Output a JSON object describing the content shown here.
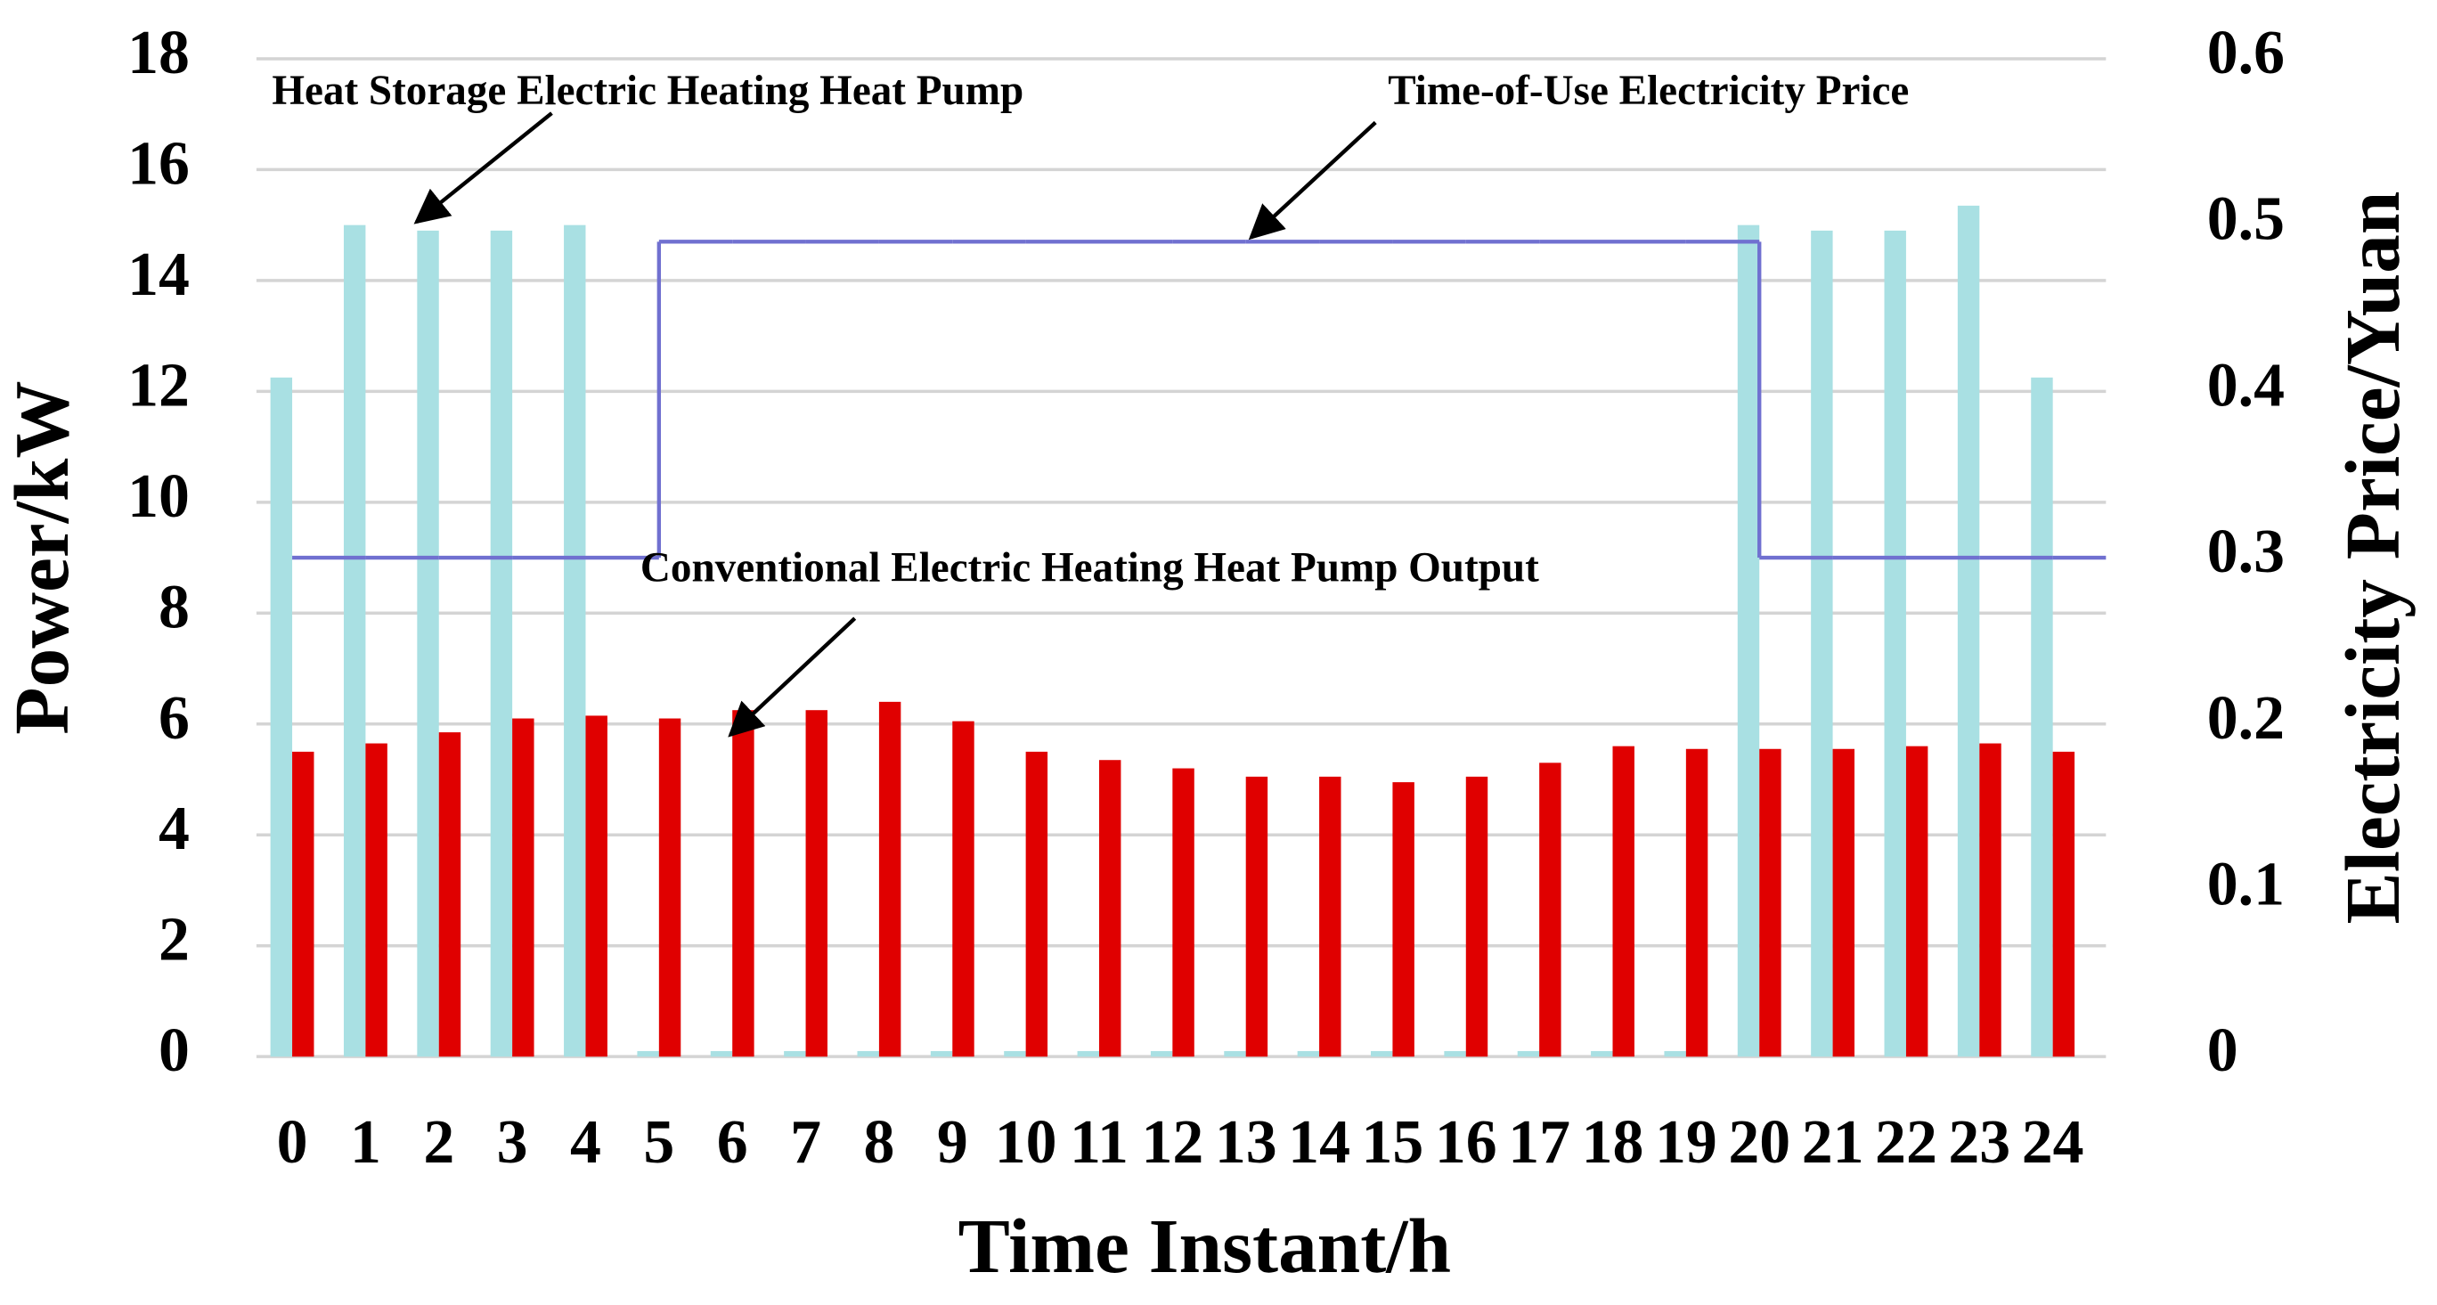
{
  "chart_data": {
    "type": "bar",
    "categories": [
      "0",
      "1",
      "2",
      "3",
      "4",
      "5",
      "6",
      "7",
      "8",
      "9",
      "10",
      "11",
      "12",
      "13",
      "14",
      "15",
      "16",
      "17",
      "18",
      "19",
      "20",
      "21",
      "22",
      "23",
      "24"
    ],
    "series": [
      {
        "name": "Heat Storage Electric Heating Heat Pump",
        "color": "#a9e0e3",
        "values": [
          12.25,
          15.0,
          14.9,
          14.9,
          15.0,
          0.1,
          0.1,
          0.1,
          0.1,
          0.1,
          0.1,
          0.1,
          0.1,
          0.1,
          0.1,
          0.1,
          0.1,
          0.1,
          0.1,
          0.1,
          15.0,
          14.9,
          14.9,
          15.35,
          12.25
        ]
      },
      {
        "name": "Conventional Electric Heating Heat Pump Output",
        "color": "#e00000",
        "values": [
          5.5,
          5.65,
          5.85,
          6.1,
          6.15,
          6.1,
          6.25,
          6.25,
          6.4,
          6.05,
          5.5,
          5.35,
          5.2,
          5.05,
          5.05,
          4.95,
          5.05,
          5.3,
          5.6,
          5.55,
          5.55,
          5.55,
          5.6,
          5.65,
          5.5
        ]
      },
      {
        "name": "Time-of-Use Electricity Price",
        "color": "#7070d0",
        "type": "step",
        "axis": "y2",
        "values": [
          0.3,
          0.3,
          0.3,
          0.3,
          0.3,
          0.49,
          0.49,
          0.49,
          0.49,
          0.49,
          0.49,
          0.49,
          0.49,
          0.49,
          0.49,
          0.49,
          0.49,
          0.49,
          0.49,
          0.49,
          0.3,
          0.3,
          0.3,
          0.3,
          0.3
        ]
      }
    ],
    "xlabel": "Time Instant/h",
    "ylabel": "Power/kW",
    "y2label": "Electricity Price/Yuan",
    "ylim": [
      0,
      18
    ],
    "yticks": [
      0,
      2,
      4,
      6,
      8,
      10,
      12,
      14,
      16,
      18
    ],
    "y2lim": [
      0,
      0.6
    ],
    "y2ticks": [
      0,
      0.1,
      0.2,
      0.3,
      0.4,
      0.5,
      0.6
    ],
    "grid": true
  }
}
